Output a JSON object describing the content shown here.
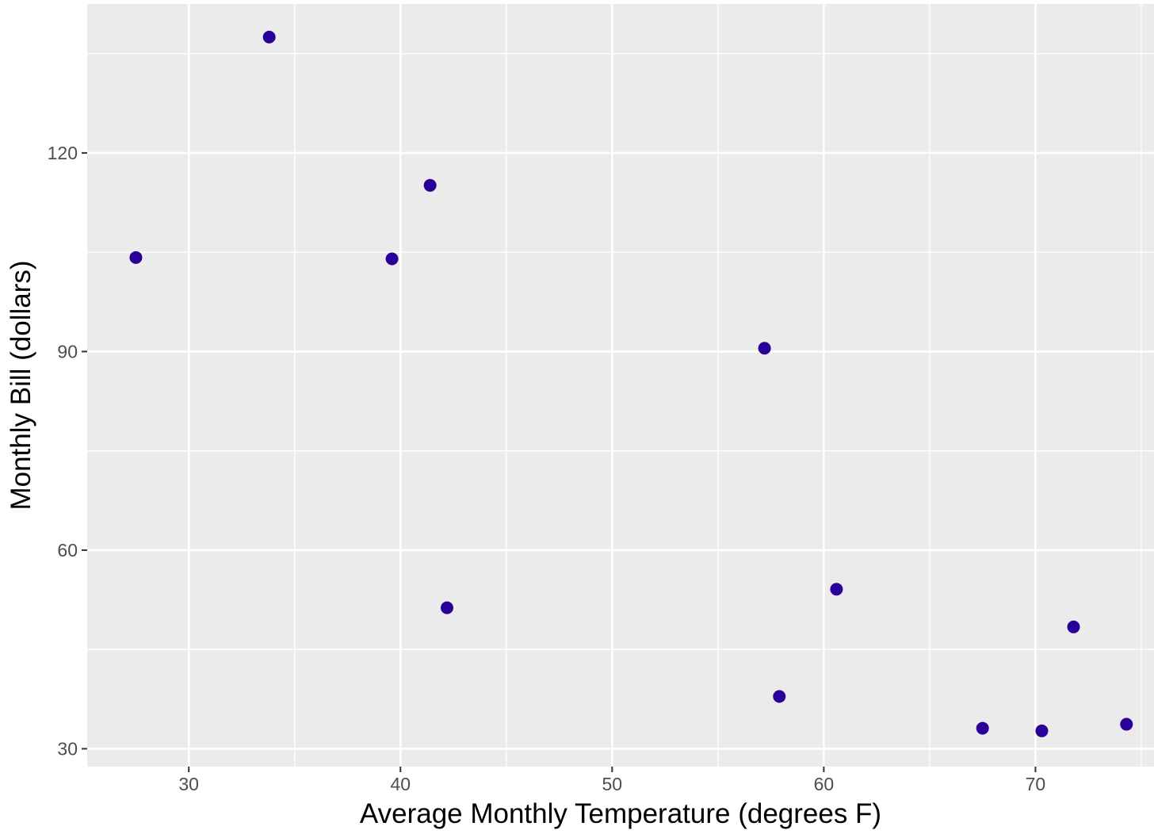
{
  "chart_data": {
    "type": "scatter",
    "title": "",
    "xlabel": "Average Monthly Temperature (degrees F)",
    "ylabel": "Monthly Bill (dollars)",
    "xlim": [
      25.2,
      75.6
    ],
    "ylim": [
      27.3,
      142.5
    ],
    "x_ticks": [
      30,
      40,
      50,
      60,
      70
    ],
    "y_ticks": [
      30,
      60,
      90,
      120
    ],
    "x_tick_labels": [
      "30",
      "40",
      "50",
      "60",
      "70"
    ],
    "y_tick_labels": [
      "30",
      "60",
      "90",
      "120"
    ],
    "grid": true,
    "point_color": "#2a0099",
    "panel_color": "#ebebeb",
    "points": [
      {
        "x": 27.5,
        "y": 104.2
      },
      {
        "x": 33.8,
        "y": 137.5
      },
      {
        "x": 39.6,
        "y": 104.0
      },
      {
        "x": 41.4,
        "y": 115.1
      },
      {
        "x": 42.2,
        "y": 51.3
      },
      {
        "x": 57.2,
        "y": 90.5
      },
      {
        "x": 57.9,
        "y": 37.9
      },
      {
        "x": 60.6,
        "y": 54.1
      },
      {
        "x": 67.5,
        "y": 33.1
      },
      {
        "x": 70.3,
        "y": 32.7
      },
      {
        "x": 71.8,
        "y": 48.4
      },
      {
        "x": 74.3,
        "y": 33.7
      }
    ]
  }
}
